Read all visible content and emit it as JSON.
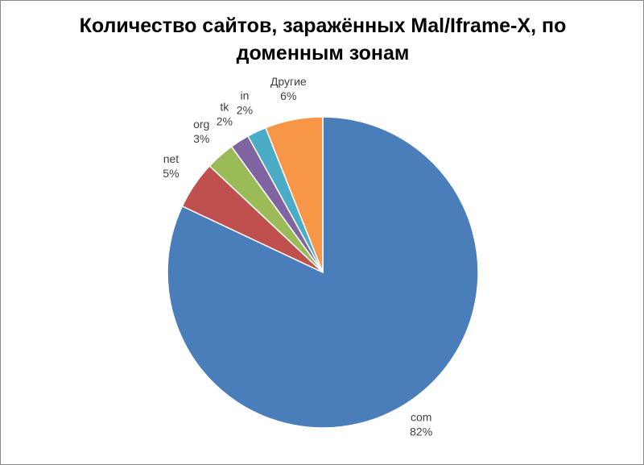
{
  "chart_data": {
    "type": "pie",
    "title": "Количество сайтов, заражённых Mal/Iframe-X, по доменным зонам",
    "categories": [
      "com",
      "net",
      "org",
      "tk",
      "in",
      "Другие"
    ],
    "values": [
      82,
      5,
      3,
      2,
      2,
      6
    ],
    "value_labels": [
      "82%",
      "5%",
      "3%",
      "2%",
      "2%",
      "6%"
    ],
    "colors": [
      "#4a7ebb",
      "#c0504d",
      "#9bbb59",
      "#8064a2",
      "#4bacc6",
      "#f79646"
    ]
  }
}
